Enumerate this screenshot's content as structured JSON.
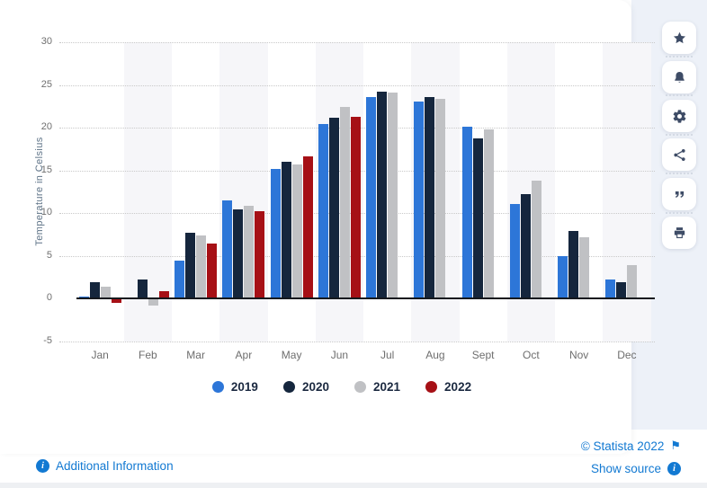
{
  "chart_data": {
    "type": "bar",
    "title": "",
    "ylabel": "Temperature in Celsius",
    "ylim": [
      -5,
      30
    ],
    "ytick_step": 5,
    "grid": true,
    "legend_position": "bottom",
    "categories": [
      "Jan",
      "Feb",
      "Mar",
      "Apr",
      "May",
      "Jun",
      "Jul",
      "Aug",
      "Sept",
      "Oct",
      "Nov",
      "Dec"
    ],
    "series": [
      {
        "name": "2019",
        "color": "#2d76d8",
        "values": [
          0.3,
          0.1,
          4.5,
          11.5,
          15.2,
          20.4,
          23.6,
          23.1,
          20.1,
          11.1,
          5.0,
          2.3
        ]
      },
      {
        "name": "2020",
        "color": "#15263d",
        "values": [
          1.9,
          2.3,
          7.7,
          10.4,
          16.0,
          21.2,
          24.2,
          23.6,
          18.8,
          12.2,
          7.9,
          1.9
        ]
      },
      {
        "name": "2021",
        "color": "#c0c1c4",
        "values": [
          1.4,
          -0.8,
          7.4,
          10.9,
          15.7,
          22.4,
          24.1,
          23.4,
          19.8,
          13.8,
          7.2,
          3.9
        ]
      },
      {
        "name": "2022",
        "color": "#a61016",
        "values": [
          -0.5,
          0.9,
          6.5,
          10.2,
          16.6,
          21.3,
          null,
          null,
          null,
          null,
          null,
          null
        ]
      }
    ]
  },
  "sidebar": {
    "buttons": [
      {
        "name": "favorite-button",
        "icon": "star-icon"
      },
      {
        "name": "alerts-button",
        "icon": "bell-icon"
      },
      {
        "name": "settings-button",
        "icon": "gear-icon"
      },
      {
        "name": "share-button",
        "icon": "share-icon"
      },
      {
        "name": "cite-button",
        "icon": "quote-icon"
      },
      {
        "name": "print-button",
        "icon": "printer-icon"
      }
    ]
  },
  "footer": {
    "additional_information": "Additional Information",
    "copyright": "© Statista 2022",
    "show_source": "Show source"
  },
  "icons": {
    "info": "i",
    "flag": "⚑"
  },
  "colors": {
    "link_blue": "#1279d2",
    "icon_navy": "#3e4c66",
    "panel_bg": "#edf1f8",
    "stripe": "#f6f6f9",
    "axis_text": "#6f6f6f",
    "legend_text": "#1b2940"
  }
}
